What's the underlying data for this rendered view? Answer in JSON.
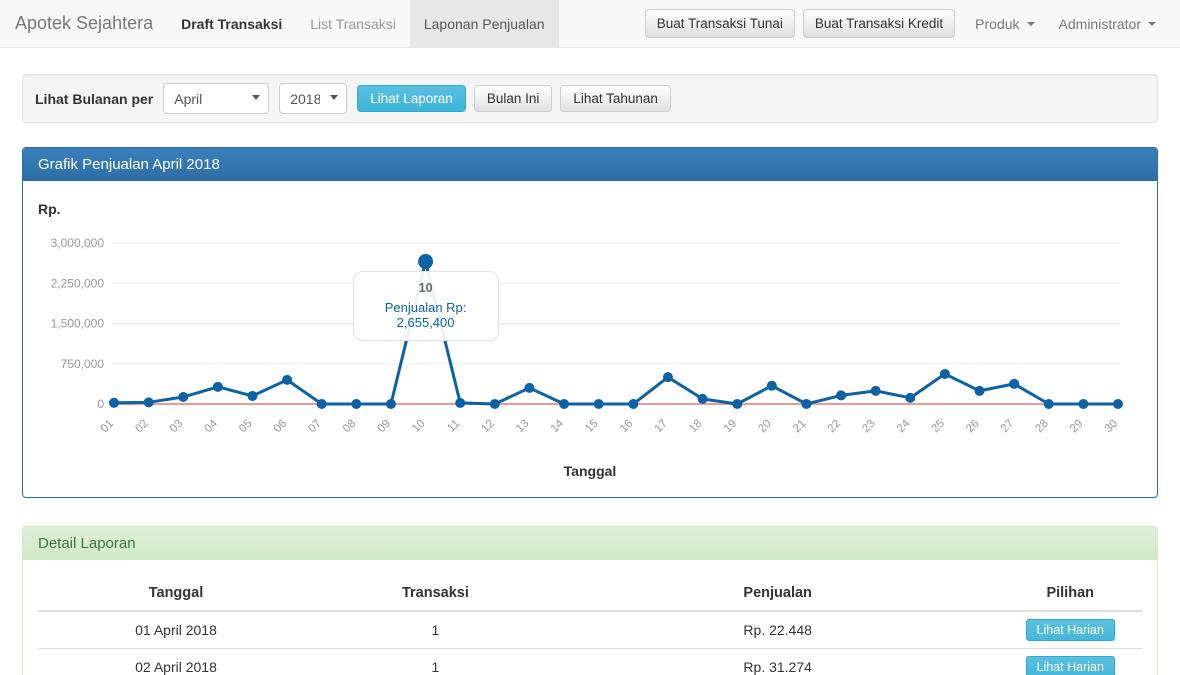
{
  "navbar": {
    "brand": "Apotek Sejahtera",
    "items": [
      {
        "label": "Draft Transaksi",
        "active": false,
        "strong": true
      },
      {
        "label": "List Transaksi",
        "active": false,
        "strong": false
      },
      {
        "label": "Laponan Penjualan",
        "active": true,
        "strong": false
      }
    ],
    "buttons": [
      "Buat Transaksi Tunai",
      "Buat Transaksi Kredit"
    ],
    "dropdowns": [
      "Produk",
      "Administrator"
    ]
  },
  "filter": {
    "label": "Lihat Bulanan per",
    "month_selected": "April",
    "year_selected": "2018",
    "buttons": [
      {
        "label": "Lihat Laporan",
        "style": "info"
      },
      {
        "label": "Bulan Ini",
        "style": "default"
      },
      {
        "label": "Lihat Tahunan",
        "style": "default"
      }
    ]
  },
  "chart_panel": {
    "title": "Grafik Penjualan April 2018",
    "y_axis_title": "Rp.",
    "x_axis_title": "Tanggal"
  },
  "chart_data": {
    "type": "line",
    "title": "Grafik Penjualan April 2018",
    "xlabel": "Tanggal",
    "ylabel": "Rp.",
    "x": [
      "01",
      "02",
      "03",
      "04",
      "05",
      "06",
      "07",
      "08",
      "09",
      "10",
      "11",
      "12",
      "13",
      "14",
      "15",
      "16",
      "17",
      "18",
      "19",
      "20",
      "21",
      "22",
      "23",
      "24",
      "25",
      "26",
      "27",
      "28",
      "29",
      "30"
    ],
    "series": [
      {
        "name": "Penjualan",
        "color": "#0b62a4",
        "values": [
          22448,
          31274,
          130000,
          320000,
          150000,
          450000,
          0,
          0,
          0,
          2655400,
          20000,
          0,
          300000,
          0,
          0,
          0,
          500000,
          95000,
          0,
          340000,
          0,
          160000,
          245000,
          115000,
          560000,
          245000,
          375000,
          0,
          0,
          0
        ]
      },
      {
        "name": "baseline-zero",
        "color": "#e79a96",
        "values": [
          0,
          0,
          0,
          0,
          0,
          0,
          0,
          0,
          0,
          0,
          0,
          0,
          0,
          0,
          0,
          0,
          0,
          0,
          0,
          0,
          0,
          0,
          0,
          0,
          0,
          0,
          0,
          0,
          0,
          0
        ]
      }
    ],
    "ylim": [
      0,
      3000000
    ],
    "y_tick_labels_top_down": [
      "3,000,000",
      "2,250,000",
      "1,500,000",
      "750,000",
      "0"
    ],
    "grid": true,
    "legend": "none",
    "tooltip": {
      "day_index": 9,
      "label": "10",
      "text": "Penjualan Rp: 2,655,400"
    }
  },
  "detail_panel": {
    "title": "Detail Laporan",
    "table": {
      "headers": [
        "Tanggal",
        "Transaksi",
        "Penjualan",
        "Pilihan"
      ],
      "rows": [
        {
          "tanggal": "01 April 2018",
          "transaksi": "1",
          "penjualan": "Rp. 22.448",
          "action": "Lihat Harian"
        },
        {
          "tanggal": "02 April 2018",
          "transaksi": "1",
          "penjualan": "Rp. 31.274",
          "action": "Lihat Harian"
        }
      ]
    }
  },
  "colors": {
    "accent_blue": "#0b62a4",
    "panel_primary": "#2e6da4",
    "info_button": "#5bc0de",
    "baseline_red": "#e79a96",
    "success_text": "#3c763d",
    "success_bg": "#dff0d8"
  }
}
